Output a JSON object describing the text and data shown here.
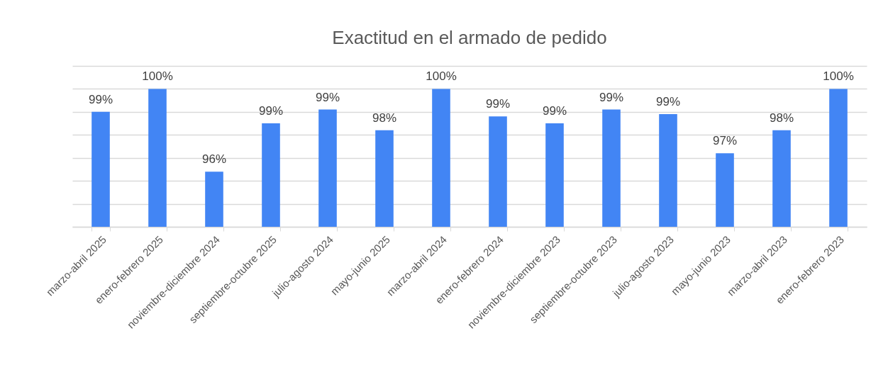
{
  "chart_data": {
    "type": "bar",
    "title": "Exactitud en el armado de pedido",
    "categories": [
      "marzo-abril 2025",
      "enero-febrero 2025",
      "noviembre-diciembre 2024",
      "septiembre-octubre 2025",
      "julio-agosto 2024",
      "mayo-junio 2025",
      "marzo-abril 2024",
      "enero-febrero 2024",
      "noviembre-diciembre 2023",
      "septiembre-octubre 2023",
      "julio-agosto 2023",
      "mayo-junio 2023",
      "marzo-abril 2023",
      "enero-febrero 2023"
    ],
    "values": [
      99.0,
      100,
      96.4,
      98.5,
      99.1,
      98.2,
      100,
      98.8,
      98.5,
      99.1,
      98.9,
      97.2,
      98.2,
      100
    ],
    "ylim": [
      94,
      101
    ],
    "value_labels": [
      "99%",
      "100%",
      "96%",
      "99%",
      "99%",
      "98%",
      "100%",
      "99%",
      "99%",
      "99%",
      "99%",
      "97%",
      "98%",
      "100%"
    ],
    "color": "#4285f4",
    "grid": "y",
    "tick_labels": "x"
  }
}
